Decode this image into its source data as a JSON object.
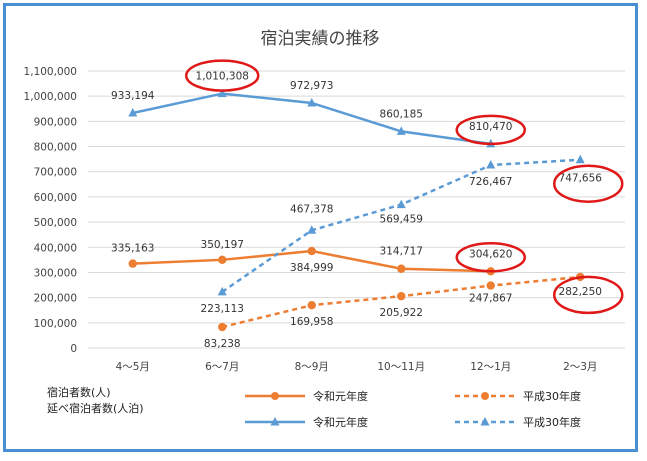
{
  "chart_data": {
    "type": "line",
    "title": "宿泊実績の推移",
    "categories": [
      "4～5月",
      "6～7月",
      "8～9月",
      "10～11月",
      "12～1月",
      "2～3月"
    ],
    "ylim": [
      0,
      1100000
    ],
    "yticks": [
      "0",
      "100,000",
      "200,000",
      "300,000",
      "400,000",
      "500,000",
      "600,000",
      "700,000",
      "800,000",
      "900,000",
      "1,000,000",
      "1,100,000"
    ],
    "grid": true,
    "legend_group_labels": [
      "宿泊者数(人)",
      "延べ宿泊者数(人泊)"
    ],
    "series": [
      {
        "id": "guests_r1",
        "group": "宿泊者数(人)",
        "name": "令和元年度",
        "color": "#ed7d31",
        "dashed": false,
        "marker": "circle",
        "values": [
          335163,
          350197,
          384999,
          314717,
          304620,
          null
        ],
        "labels": [
          "335,163",
          "350,197",
          "384,999",
          "314,717",
          "304,620",
          ""
        ]
      },
      {
        "id": "guests_h30",
        "group": "宿泊者数(人)",
        "name": "平成30年度",
        "color": "#ed7d31",
        "dashed": true,
        "marker": "circle",
        "values": [
          null,
          83238,
          169958,
          205922,
          247867,
          282250
        ],
        "labels": [
          "",
          "83,238",
          "169,958",
          "205,922",
          "247,867",
          "282,250"
        ]
      },
      {
        "id": "nights_r1",
        "group": "延べ宿泊者数(人泊)",
        "name": "令和元年度",
        "color": "#5b9bd5",
        "dashed": false,
        "marker": "triangle",
        "values": [
          933194,
          1010308,
          972973,
          860185,
          810470,
          null
        ],
        "labels": [
          "933,194",
          "1,010,308",
          "972,973",
          "860,185",
          "810,470",
          ""
        ]
      },
      {
        "id": "nights_h30",
        "group": "延べ宿泊者数(人泊)",
        "name": "平成30年度",
        "color": "#5b9bd5",
        "dashed": true,
        "marker": "triangle",
        "values": [
          null,
          223113,
          467378,
          569459,
          726467,
          747656
        ],
        "labels": [
          "",
          "223,113",
          "467,378",
          "569,459",
          "726,467",
          "747,656"
        ]
      }
    ],
    "highlights": [
      {
        "series": "nights_r1",
        "index": 1
      },
      {
        "series": "nights_r1",
        "index": 4
      },
      {
        "series": "nights_h30",
        "index": 5
      },
      {
        "series": "guests_r1",
        "index": 4
      },
      {
        "series": "guests_h30",
        "index": 5
      }
    ],
    "highlight_color": "#e01818"
  }
}
